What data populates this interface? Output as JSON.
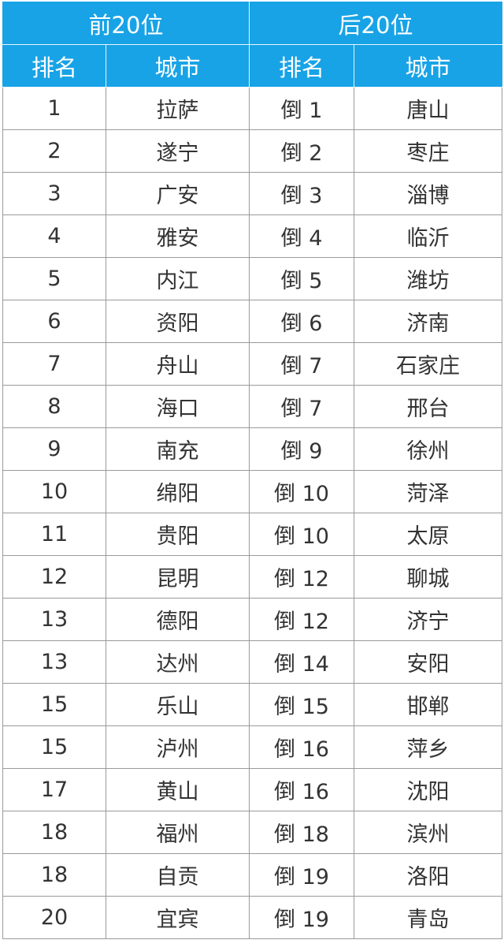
{
  "header": {
    "groups": [
      "前20位",
      "后20位"
    ]
  },
  "table": {
    "columns": [
      "排名",
      "城市",
      "排名",
      "城市"
    ],
    "rows": [
      [
        1,
        "拉萨",
        "倒 1",
        "唐山"
      ],
      [
        2,
        "遂宁",
        "倒 2",
        "枣庄"
      ],
      [
        3,
        "广安",
        "倒 3",
        "淄博"
      ],
      [
        4,
        "雅安",
        "倒 4",
        "临沂"
      ],
      [
        5,
        "内江",
        "倒 5",
        "潍坊"
      ],
      [
        6,
        "资阳",
        "倒 6",
        "济南"
      ],
      [
        7,
        "舟山",
        "倒 7",
        "石家庄"
      ],
      [
        8,
        "海口",
        "倒 7",
        "邢台"
      ],
      [
        9,
        "南充",
        "倒 9",
        "徐州"
      ],
      [
        10,
        "绵阳",
        "倒 10",
        "菏泽"
      ],
      [
        11,
        "贵阳",
        "倒 10",
        "太原"
      ],
      [
        12,
        "昆明",
        "倒 12",
        "聊城"
      ],
      [
        13,
        "德阳",
        "倒 12",
        "济宁"
      ],
      [
        13,
        "达州",
        "倒 14",
        "安阳"
      ],
      [
        15,
        "乐山",
        "倒 15",
        "邯郸"
      ],
      [
        15,
        "泸州",
        "倒 16",
        "萍乡"
      ],
      [
        17,
        "黄山",
        "倒 16",
        "沈阳"
      ],
      [
        18,
        "福州",
        "倒 18",
        "滨州"
      ],
      [
        18,
        "自贡",
        "倒 19",
        "洛阳"
      ],
      [
        20,
        "宜宾",
        "倒 19",
        "青岛"
      ]
    ]
  }
}
